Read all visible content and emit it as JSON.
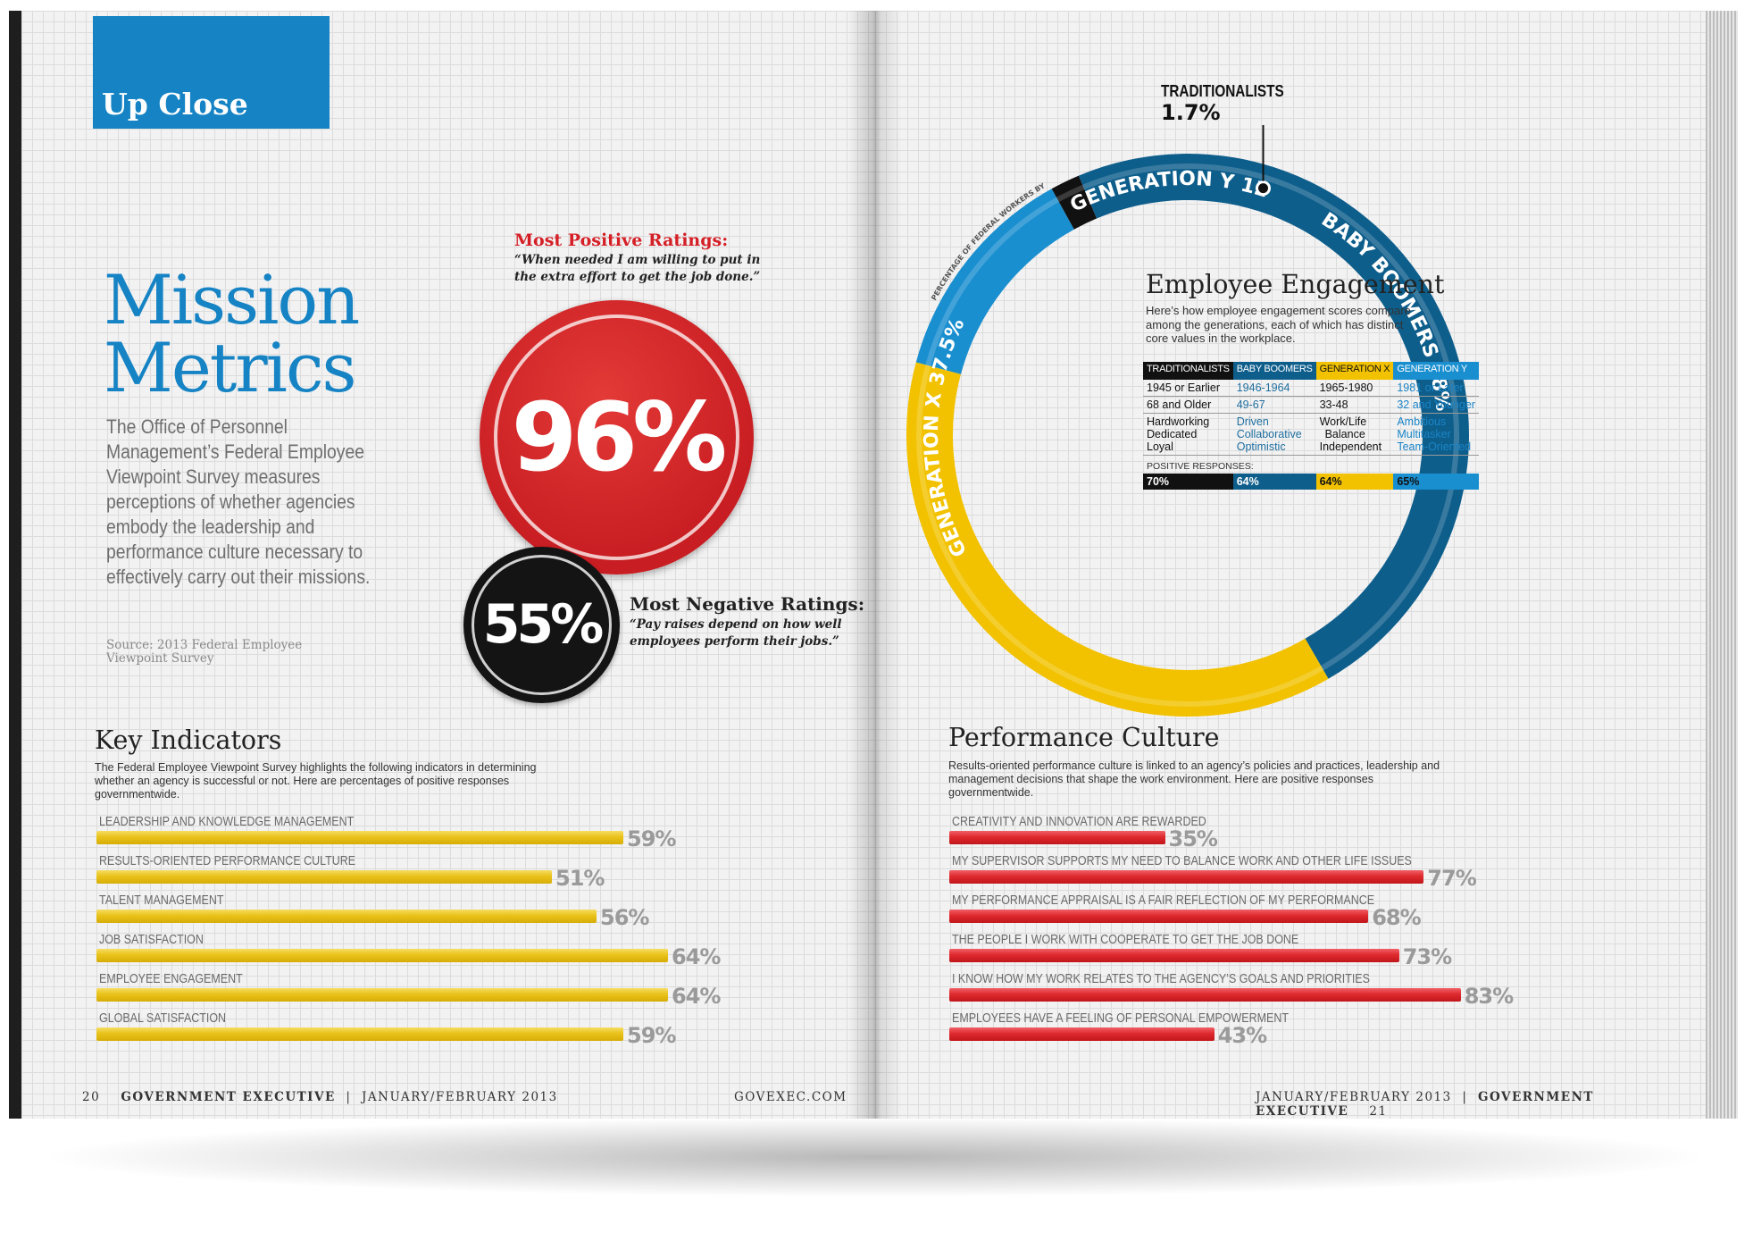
{
  "left_page": {
    "section_tab": "Up Close",
    "title_line1": "Mission",
    "title_line2": "Metrics",
    "intro": "The Office of Personnel Management’s Federal Employee Viewpoint Survey measures perceptions of whether agencies embody the leadership and performance culture necessary to effectively carry out their missions.",
    "source": "Source: 2013 Federal Employee Viewpoint Survey",
    "most_positive": {
      "title": "Most Positive Ratings:",
      "quote": "“When needed I am willing to put in the extra effort to get the job done.”",
      "value": "96%"
    },
    "most_negative": {
      "title": "Most Negative Ratings:",
      "quote": "“Pay raises depend on how well employees perform their jobs.”",
      "value": "55%"
    },
    "key_indicators": {
      "title": "Key Indicators",
      "description": "The Federal Employee Viewpoint Survey highlights the following indicators in determining whether an agency is successful or not. Here are percentages of positive responses governmentwide.",
      "items": [
        {
          "label": "LEADERSHIP AND KNOWLEDGE MANAGEMENT",
          "value": 59,
          "display": "59%"
        },
        {
          "label": "RESULTS-ORIENTED PERFORMANCE CULTURE",
          "value": 51,
          "display": "51%"
        },
        {
          "label": "TALENT MANAGEMENT",
          "value": 56,
          "display": "56%"
        },
        {
          "label": "JOB SATISFACTION",
          "value": 64,
          "display": "64%"
        },
        {
          "label": "EMPLOYEE ENGAGEMENT",
          "value": 64,
          "display": "64%"
        },
        {
          "label": "GLOBAL SATISFACTION",
          "value": 59,
          "display": "59%"
        }
      ]
    },
    "footer": {
      "page_number": "20",
      "publication": "GOVERNMENT EXECUTIVE",
      "separator": "|",
      "issue": "JANUARY/FEBRUARY 2013",
      "website": "GOVEXEC.COM"
    }
  },
  "right_page": {
    "donut": {
      "caption": "PERCENTAGE OF FEDERAL WORKERS BY GENERATION",
      "segments": [
        {
          "name": "GENERATION Y",
          "value": 12.8,
          "display": "12.8%",
          "color": "#1a8fd0"
        },
        {
          "name": "TRADITIONALISTS",
          "value": 1.7,
          "display": "1.7%",
          "color": "#111111"
        },
        {
          "name": "BABY BOOMERS",
          "value": 48,
          "display": "48%",
          "color": "#0e5e8c"
        },
        {
          "name": "GENERATION X",
          "value": 37.5,
          "display": "37.5%",
          "color": "#f2c200"
        }
      ],
      "traditionalists_label": "TRADITIONALISTS",
      "traditionalists_value": "1.7%",
      "gen_y_label": "GENERATION Y 12.8%",
      "gen_x_label": "GENERATION X 37.5%",
      "boomers_label": "BABY BOOMERS 48%"
    },
    "engagement": {
      "title": "Employee Engagement",
      "description": "Here’s how employee engagement scores compare among the generations, each of which has distinct core values in the workplace.",
      "headers": [
        "TRADITIONALISTS",
        "BABY BOOMERS",
        "GENERATION X",
        "GENERATION Y"
      ],
      "header_colors": [
        "#111111",
        "#0e5e8c",
        "#f2c200",
        "#1a8fd0"
      ],
      "years": [
        "1945 or Earlier",
        "1946-1964",
        "1965-1980",
        "1981 or Later"
      ],
      "ages": [
        "68 and Older",
        "49-67",
        "33-48",
        "32 and Younger"
      ],
      "values": [
        [
          "Hardworking",
          "Dedicated",
          "Loyal"
        ],
        [
          "Driven",
          "Collaborative",
          "Optimistic"
        ],
        [
          "Work/Life",
          "Balance",
          "Independent"
        ],
        [
          "Ambitious",
          "Multitasker",
          "Team-Oriented"
        ]
      ],
      "positive_label": "POSITIVE RESPONSES:",
      "positive": [
        "70%",
        "64%",
        "64%",
        "65%"
      ]
    },
    "performance_culture": {
      "title": "Performance Culture",
      "description": "Results-oriented performance culture is linked to an agency’s policies and practices, leadership and management decisions that shape the work environment. Here are positive responses governmentwide.",
      "items": [
        {
          "label": "CREATIVITY AND INNOVATION ARE REWARDED",
          "value": 35,
          "display": "35%"
        },
        {
          "label": "MY SUPERVISOR SUPPORTS MY NEED TO BALANCE WORK AND OTHER LIFE ISSUES",
          "value": 77,
          "display": "77%"
        },
        {
          "label": "MY PERFORMANCE APPRAISAL IS A FAIR REFLECTION OF MY PERFORMANCE",
          "value": 68,
          "display": "68%"
        },
        {
          "label": "THE PEOPLE I WORK WITH COOPERATE TO GET THE JOB DONE",
          "value": 73,
          "display": "73%"
        },
        {
          "label": "I KNOW HOW MY WORK RELATES TO THE AGENCY’S GOALS AND PRIORITIES",
          "value": 83,
          "display": "83%"
        },
        {
          "label": "EMPLOYEES HAVE A FEELING OF PERSONAL EMPOWERMENT",
          "value": 43,
          "display": "43%"
        }
      ]
    },
    "footer": {
      "issue": "JANUARY/FEBRUARY 2013",
      "separator": "|",
      "publication": "GOVERNMENT EXECUTIVE",
      "page_number": "21"
    }
  },
  "colors": {
    "accent_blue": "#1583c4",
    "red": "#d51f26",
    "yellow": "#e9c21a"
  }
}
